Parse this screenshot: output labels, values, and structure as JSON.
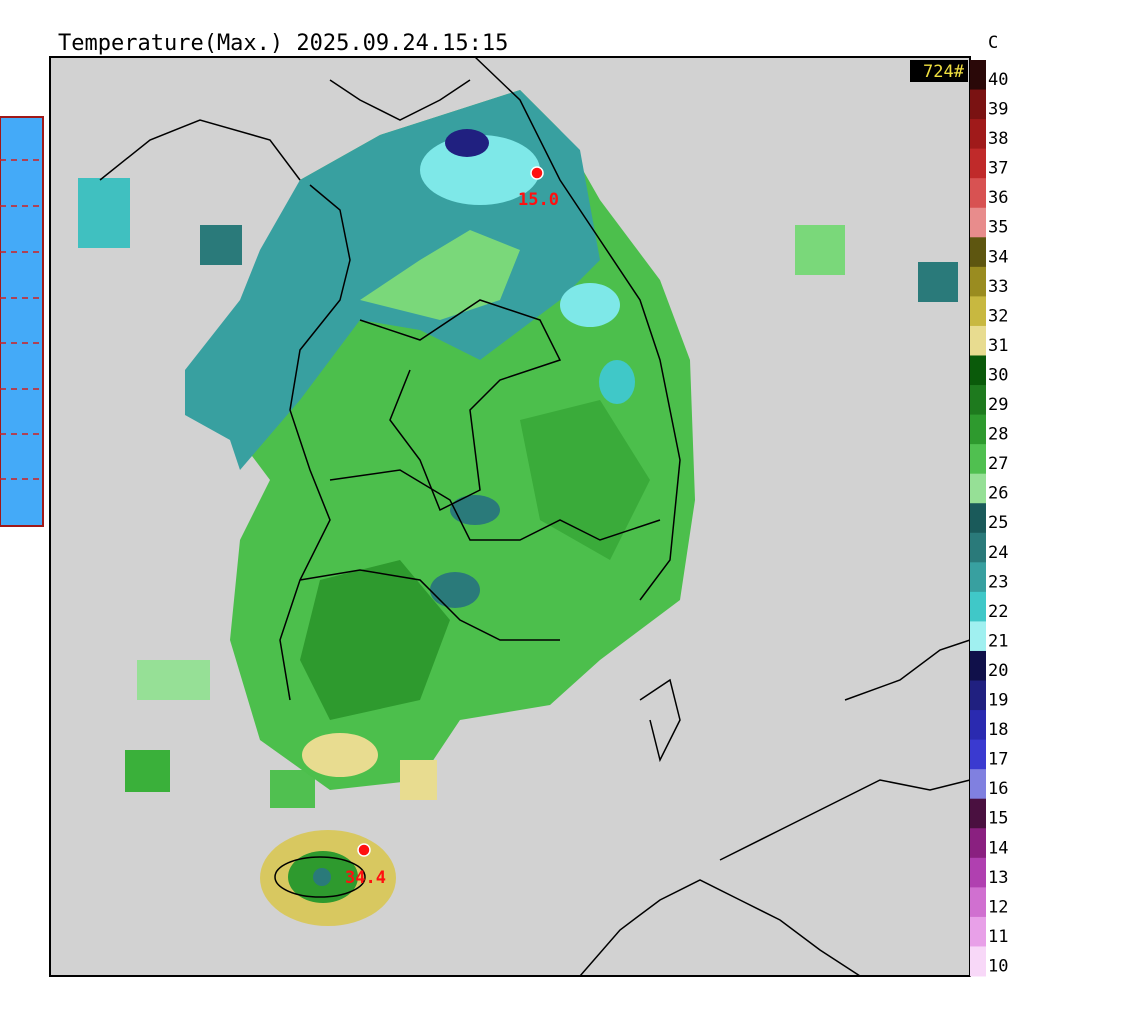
{
  "header": {
    "title": "Temperature(Max.) 2025.09.24.15:15",
    "unit": "C",
    "count": "724#"
  },
  "legend": {
    "values": [
      40,
      39,
      38,
      37,
      36,
      35,
      34,
      33,
      32,
      31,
      30,
      29,
      28,
      27,
      26,
      25,
      24,
      23,
      22,
      21,
      20,
      19,
      18,
      17,
      16,
      15,
      14,
      13,
      12,
      11,
      10
    ],
    "colors": [
      "#2a0808",
      "#7a1212",
      "#a01a1a",
      "#c02a2a",
      "#d85252",
      "#e88c8c",
      "#5e5610",
      "#9a8c20",
      "#c8b840",
      "#e8dc90",
      "#0a5a0a",
      "#1e7a1e",
      "#2e9a2e",
      "#50c050",
      "#96e096",
      "#1a5a5a",
      "#2a7a7a",
      "#38a0a0",
      "#40c8c8",
      "#a0f0f0",
      "#10104a",
      "#202080",
      "#2a2ab0",
      "#3a3ad0",
      "#8080e0",
      "#4a1040",
      "#8a2080",
      "#b040b0",
      "#d070d0",
      "#e8a0e8",
      "#f8d8f8"
    ]
  },
  "stations": [
    {
      "label": "15.0"
    },
    {
      "label": "34.4"
    }
  ]
}
